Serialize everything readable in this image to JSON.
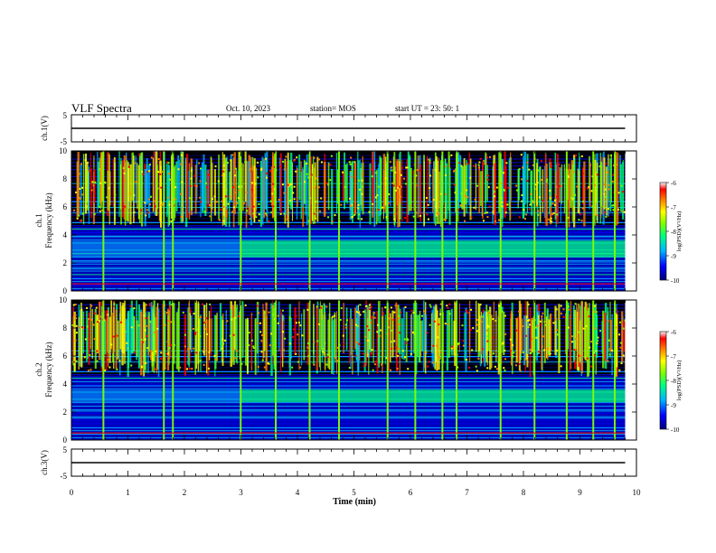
{
  "header": {
    "title": "VLF Spectra",
    "date": "Oct. 10, 2023",
    "station": "station= MOS",
    "start": "start  UT  =   23: 50: 1"
  },
  "chart_data": [
    {
      "type": "line",
      "name": "ch1-voltage",
      "ylabel": "ch.1(V)",
      "ylim": [
        -5,
        5
      ],
      "yticks": [
        "5",
        "-5"
      ],
      "xlim": [
        0,
        10
      ],
      "x": [
        0,
        9.8
      ],
      "values": [
        0,
        0
      ]
    },
    {
      "type": "heatmap",
      "name": "ch1-spectrogram",
      "ylabel": "ch.1\nFrequency (kHz)",
      "ylabel_lines": [
        "ch.1",
        "Frequency (kHz)"
      ],
      "ylim": [
        0,
        10
      ],
      "yticks": [
        "0",
        "2",
        "4",
        "6",
        "8",
        "10"
      ],
      "xlim": [
        0,
        10
      ],
      "data_end": 9.8,
      "colorbar": {
        "label": "log(PSD)(V²/Hz)",
        "ticks": [
          "-6",
          "-7",
          "-8",
          "-9",
          "-10"
        ],
        "range": [
          -10,
          -6
        ]
      },
      "hiss_band_khz": [
        2.4,
        3.6
      ],
      "hiss_onset_min": 3.0,
      "strong_sferic_times_min": [
        0.55,
        1.62,
        1.78,
        2.98,
        3.6,
        4.2,
        4.72,
        5.58,
        6.07,
        6.55,
        6.8,
        7.58,
        8.18,
        8.75,
        9.22,
        9.6
      ]
    },
    {
      "type": "heatmap",
      "name": "ch2-spectrogram",
      "ylabel": "ch.2\nFrequency (kHz)",
      "ylabel_lines": [
        "ch.2",
        "Frequency (kHz)"
      ],
      "ylim": [
        0,
        10
      ],
      "yticks": [
        "0",
        "2",
        "4",
        "6",
        "8",
        "10"
      ],
      "xlim": [
        0,
        10
      ],
      "data_end": 9.8,
      "colorbar": {
        "label": "log(PSD)(V²/Hz)",
        "ticks": [
          "-6",
          "-7",
          "-8",
          "-9",
          "-10"
        ],
        "range": [
          -10,
          -6
        ]
      },
      "hiss_band_khz": [
        2.7,
        3.6
      ],
      "hiss_onset_min": 3.0,
      "strong_sferic_times_min": [
        0.55,
        1.62,
        1.78,
        2.98,
        3.6,
        4.2,
        4.72,
        5.58,
        6.07,
        6.55,
        6.8,
        7.58,
        8.18,
        8.75,
        9.22,
        9.6
      ]
    },
    {
      "type": "line",
      "name": "ch3-voltage",
      "ylabel": "ch.3(V)",
      "ylim": [
        -5,
        5
      ],
      "yticks": [
        "5",
        "-5"
      ],
      "xlim": [
        0,
        10
      ],
      "x": [
        0,
        9.8
      ],
      "values": [
        0,
        0
      ]
    }
  ],
  "xaxis": {
    "label": "Time  (min)",
    "ticks": [
      "0",
      "1",
      "2",
      "3",
      "4",
      "5",
      "6",
      "7",
      "8",
      "9",
      "10"
    ]
  },
  "colors": {
    "background": "#000000",
    "colormap": [
      "#00007a",
      "#0000ff",
      "#00b4ff",
      "#00ff80",
      "#80ff00",
      "#ffff00",
      "#ff8000",
      "#ff0000",
      "#ffffff"
    ]
  }
}
